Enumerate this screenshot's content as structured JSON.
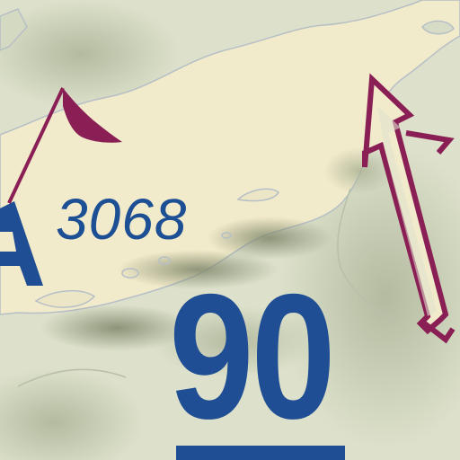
{
  "peak": {
    "elevation": "3068"
  },
  "route": {
    "number": "90"
  },
  "colors": {
    "water": "#dfe3cf",
    "land_light": "#f3eccc",
    "relief_shadow": "#9ea487",
    "label_blue": "#1f4e94",
    "flag_purple": "#8a1f55"
  },
  "icons": [
    "summit-flag-icon",
    "direction-arrow-icon",
    "pass-marker-icon"
  ]
}
